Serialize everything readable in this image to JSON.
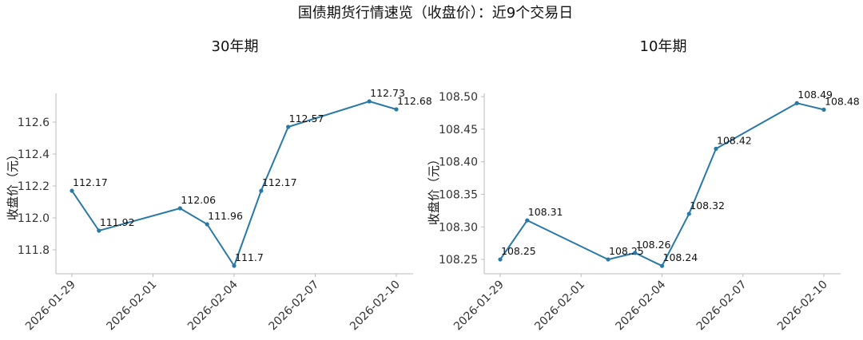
{
  "figure": {
    "suptitle": "国债期货行情速览（收盘价）：近9个交易日",
    "line_color": "#2878a8"
  },
  "chart_data": [
    {
      "type": "line",
      "title": "30年期",
      "ylabel": "收盘价（元）",
      "xlabel": "",
      "x": [
        "2026-01-29",
        "2026-01-30",
        "2026-02-02",
        "2026-02-03",
        "2026-02-04",
        "2026-02-05",
        "2026-02-06",
        "2026-02-09",
        "2026-02-10"
      ],
      "values": [
        112.17,
        111.92,
        112.06,
        111.96,
        111.7,
        112.17,
        112.57,
        112.73,
        112.68
      ],
      "point_labels": [
        "112.17",
        "111.92",
        "112.06",
        "111.96",
        "111.7",
        "112.17",
        "112.57",
        "112.73",
        "112.68"
      ],
      "xlim": [
        "2026-01-28",
        "2026-02-10"
      ],
      "ylim": [
        111.65,
        112.78
      ],
      "yticks": [
        111.8,
        112.0,
        112.2,
        112.4,
        112.6
      ],
      "ytick_labels": [
        "111.8",
        "112.0",
        "112.2",
        "112.4",
        "112.6"
      ],
      "xticks": [
        "2026-01-29",
        "2026-02-01",
        "2026-02-04",
        "2026-02-07",
        "2026-02-10"
      ],
      "grid": false,
      "legend": "none"
    },
    {
      "type": "line",
      "title": "10年期",
      "ylabel": "收盘价（元）",
      "xlabel": "",
      "x": [
        "2026-01-29",
        "2026-01-30",
        "2026-02-02",
        "2026-02-03",
        "2026-02-04",
        "2026-02-05",
        "2026-02-06",
        "2026-02-09",
        "2026-02-10"
      ],
      "values": [
        108.25,
        108.31,
        108.25,
        108.26,
        108.24,
        108.32,
        108.42,
        108.49,
        108.48
      ],
      "point_labels": [
        "108.25",
        "108.31",
        "108.25",
        "108.26",
        "108.24",
        "108.32",
        "108.42",
        "108.49",
        "108.48"
      ],
      "xlim": [
        "2026-01-28",
        "2026-02-10"
      ],
      "ylim": [
        108.228,
        108.505
      ],
      "yticks": [
        108.25,
        108.3,
        108.35,
        108.4,
        108.45,
        108.5
      ],
      "ytick_labels": [
        "108.25",
        "108.30",
        "108.35",
        "108.40",
        "108.45",
        "108.50"
      ],
      "xticks": [
        "2026-01-29",
        "2026-02-01",
        "2026-02-04",
        "2026-02-07",
        "2026-02-10"
      ],
      "grid": false,
      "legend": "none"
    }
  ]
}
